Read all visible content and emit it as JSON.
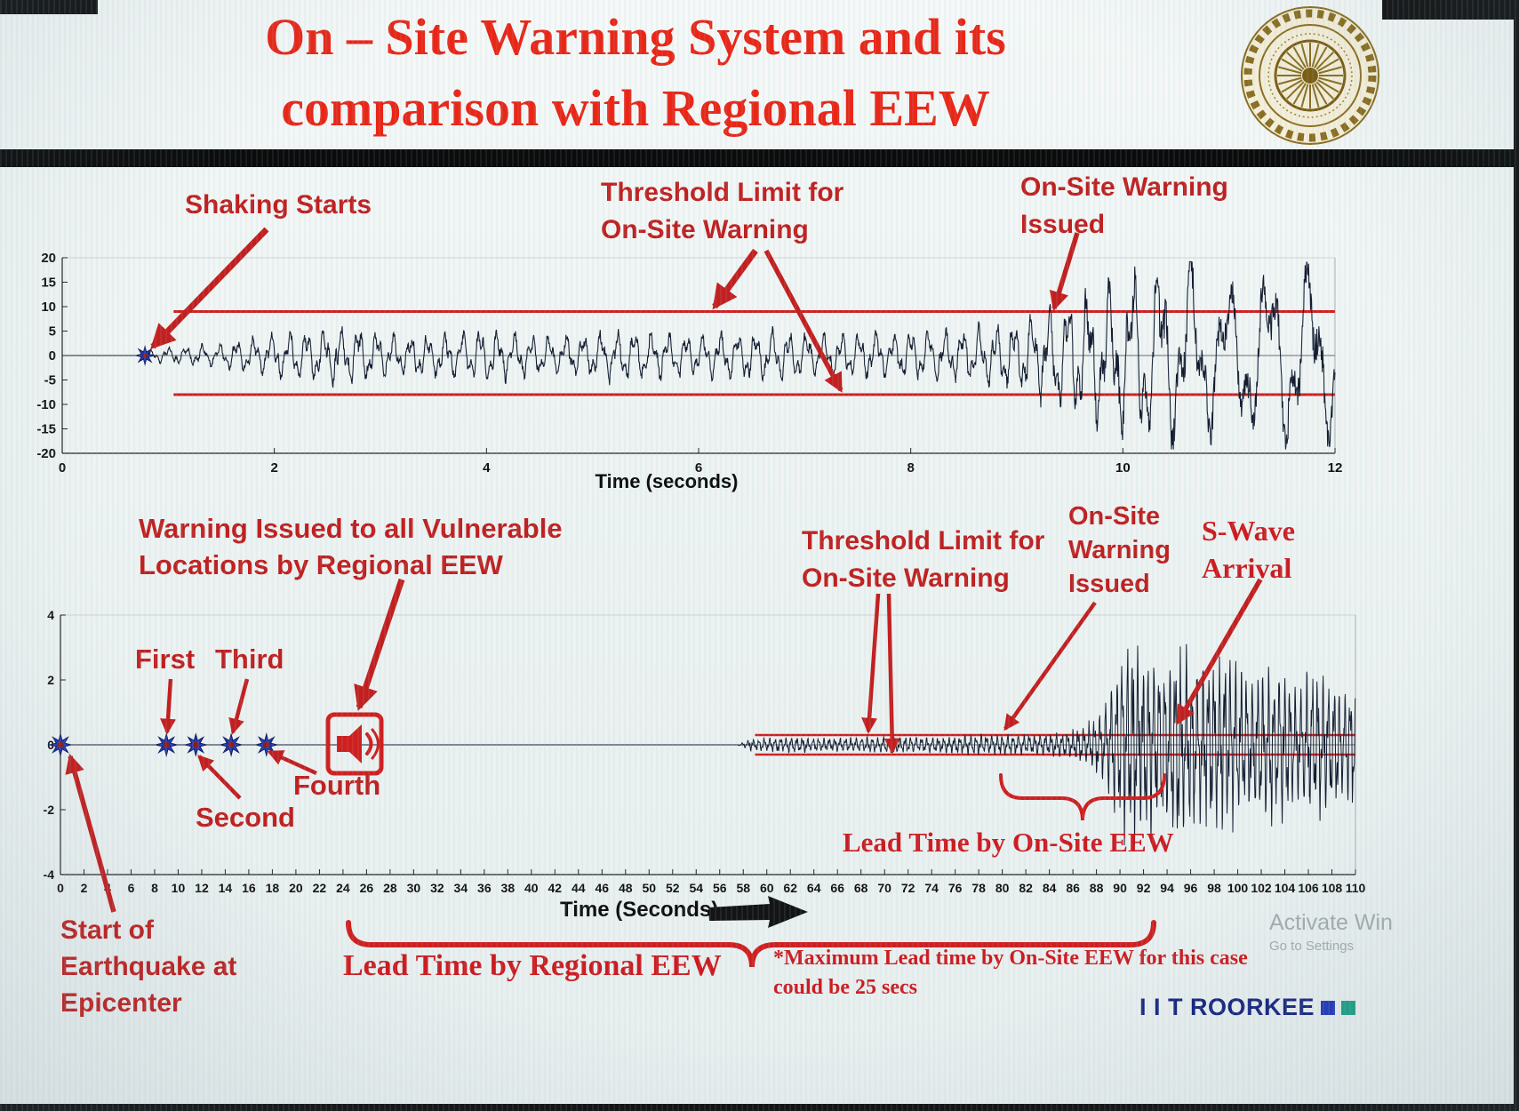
{
  "header": {
    "title_line1": "On – Site Warning System and its",
    "title_line2": "comparison with Regional EEW"
  },
  "colors": {
    "title_red": "#e92617",
    "annotation_red": "#c02020",
    "threshold_red": "#cf1f1f",
    "waveform": "#141c30",
    "marker_blue": "#2439bb",
    "marker_core": "#8d1f15",
    "brand_navy": "#16247e",
    "footer_square_1": "#2438b8",
    "footer_square_2": "#1f9f86",
    "logo_gold": "#8a6d1e"
  },
  "annotations": {
    "shaking_starts": "Shaking Starts",
    "threshold_top": [
      "Threshold Limit for",
      "On-Site Warning"
    ],
    "onsite_top": [
      "On-Site Warning",
      "Issued"
    ],
    "regional_warning": [
      "Warning Issued to all Vulnerable",
      "Locations by Regional EEW"
    ],
    "threshold_bottom": [
      "Threshold Limit for",
      "On-Site Warning"
    ],
    "onsite_bottom": [
      "On-Site",
      "Warning",
      "Issued"
    ],
    "s_wave": [
      "S-Wave",
      "Arrival"
    ],
    "p_first": "First",
    "p_second": "Second",
    "p_third": "Third",
    "p_fourth": "Fourth",
    "lead_onsite": "Lead Time by On-Site EEW",
    "lead_regional": "Lead Time by Regional EEW",
    "start_epicenter": [
      "Start of",
      "Earthquake at",
      "Epicenter"
    ],
    "footnote": [
      "*Maximum Lead time by On-Site EEW for this case",
      "could be 25 secs"
    ]
  },
  "footer": {
    "brand": "I I T ROORKEE",
    "watermark_line1": "Activate Win",
    "watermark_line2": "Go to Settings"
  },
  "chart_data": [
    {
      "type": "line",
      "name": "onsite-accelerogram",
      "title": "",
      "xlabel": "Time (seconds)",
      "ylabel": "",
      "xlim": [
        0,
        12
      ],
      "ylim": [
        -20,
        20
      ],
      "xticks": [
        0,
        2,
        4,
        6,
        8,
        10,
        12
      ],
      "yticks": [
        20,
        15,
        10,
        5,
        0,
        -5,
        -10,
        -15,
        -20
      ],
      "grid": false,
      "threshold_upper": 9,
      "threshold_lower": -8,
      "threshold_start_t": 1.05,
      "events": {
        "shaking_starts_t": 0.78,
        "onsite_warning_issued_t": 9.3
      },
      "markers": [
        {
          "name": "shaking-start-star",
          "t": 0.78,
          "value": 0
        }
      ],
      "envelope": [
        [
          0,
          0
        ],
        [
          0.72,
          0
        ],
        [
          0.9,
          1.2
        ],
        [
          1.5,
          2.2
        ],
        [
          2.2,
          4.6
        ],
        [
          2.7,
          5.2
        ],
        [
          3.2,
          3.6
        ],
        [
          4,
          4.6
        ],
        [
          4.6,
          3.4
        ],
        [
          5.2,
          4.6
        ],
        [
          6,
          3.8
        ],
        [
          6.6,
          4.6
        ],
        [
          7.2,
          3.8
        ],
        [
          8,
          4.4
        ],
        [
          8.6,
          5
        ],
        [
          9,
          6.5
        ],
        [
          9.4,
          9.5
        ],
        [
          9.8,
          13
        ],
        [
          10.2,
          16
        ],
        [
          10.6,
          17
        ],
        [
          11,
          13.5
        ],
        [
          11.4,
          16
        ],
        [
          11.8,
          17.5
        ],
        [
          12,
          14
        ]
      ],
      "wave": {
        "points": 2600,
        "seed": 7,
        "freq_start": 6.0,
        "freq_end": 2.6,
        "freq_change_t": 9.7
      }
    },
    {
      "type": "line",
      "name": "regional-seismogram",
      "title": "",
      "xlabel": "Time (Seconds)",
      "ylabel": "",
      "xlim": [
        0,
        110
      ],
      "ylim": [
        -4,
        4
      ],
      "xtick_step": 2,
      "yticks": [
        4,
        2,
        0,
        -2,
        -4
      ],
      "grid": false,
      "threshold_upper": 0.3,
      "threshold_lower": -0.3,
      "threshold_start_t": 59,
      "p_wave_detections": [
        {
          "label": "Start of Earthquake at Epicenter",
          "t": 0
        },
        {
          "label": "First",
          "t": 9
        },
        {
          "label": "Second",
          "t": 11.5
        },
        {
          "label": "Third",
          "t": 14.5
        },
        {
          "label": "Fourth",
          "t": 17.5
        }
      ],
      "events": {
        "regional_eew_warning_t": 25,
        "onsite_warning_issued_t": 80,
        "s_wave_arrival_t": 93.5
      },
      "lead_time_regional_span": [
        25,
        93.5
      ],
      "lead_time_onsite_span": [
        80,
        93.5
      ],
      "max_onsite_lead_time_secs": 25,
      "envelope": [
        [
          0,
          0
        ],
        [
          57.5,
          0
        ],
        [
          58.5,
          0.14
        ],
        [
          62,
          0.2
        ],
        [
          66,
          0.17
        ],
        [
          70,
          0.22
        ],
        [
          74,
          0.19
        ],
        [
          78,
          0.26
        ],
        [
          82,
          0.27
        ],
        [
          85,
          0.3
        ],
        [
          87,
          0.45
        ],
        [
          88.5,
          0.9
        ],
        [
          90,
          2.3
        ],
        [
          91.5,
          2.7
        ],
        [
          93,
          2.1
        ],
        [
          95,
          2.5
        ],
        [
          97,
          2.0
        ],
        [
          99,
          2.4
        ],
        [
          101,
          1.8
        ],
        [
          103,
          2.1
        ],
        [
          105,
          1.6
        ],
        [
          107,
          1.9
        ],
        [
          109,
          1.5
        ],
        [
          110,
          1.7
        ]
      ],
      "wave": {
        "points": 3800,
        "seed": 13,
        "freq": 2.1
      }
    }
  ]
}
